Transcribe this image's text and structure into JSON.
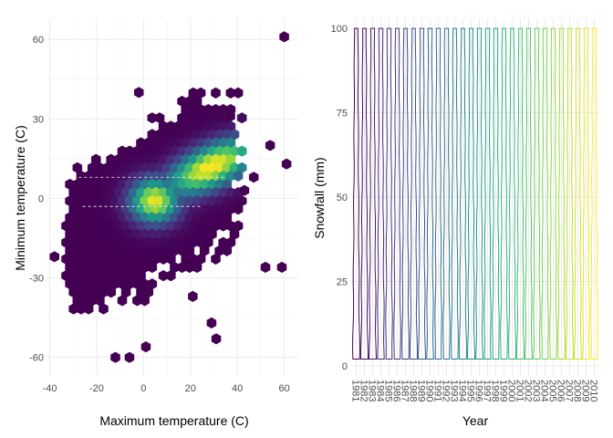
{
  "chart_data": [
    {
      "type": "hexbin",
      "xlabel": "Maximum temperature (C)",
      "ylabel": "Minimum temperature (C)",
      "xlim": [
        -41,
        66
      ],
      "ylim": [
        -67,
        68
      ],
      "x_ticks": [
        -40,
        -20,
        0,
        20,
        40,
        60
      ],
      "y_ticks": [
        -60,
        -30,
        0,
        30,
        60
      ],
      "grid": true,
      "colormap": "viridis",
      "density_peak": [
        25,
        15
      ],
      "density_ridge_slope": 0.52,
      "colors": {
        "low": "#440154",
        "mid": "#21908c",
        "high": "#fde725"
      }
    },
    {
      "type": "violin",
      "xlabel": "Year",
      "ylabel": "Snowfall (mm)",
      "categories": [
        "1981",
        "1982",
        "1983",
        "1984",
        "1985",
        "1986",
        "1987",
        "1988",
        "1989",
        "1990",
        "1991",
        "1992",
        "1993",
        "1994",
        "1995",
        "1996",
        "1997",
        "1998",
        "1999",
        "2000",
        "2001",
        "2002",
        "2003",
        "2004",
        "2005",
        "2006",
        "2007",
        "2008",
        "2009",
        "2010"
      ],
      "y_range": [
        2,
        100
      ],
      "ylim": [
        -3,
        103
      ],
      "y_ticks": [
        0,
        25,
        50,
        75,
        100
      ],
      "grid": true,
      "colormap": "viridis",
      "colors": {
        "first": "#440154",
        "last": "#fde725"
      }
    }
  ]
}
